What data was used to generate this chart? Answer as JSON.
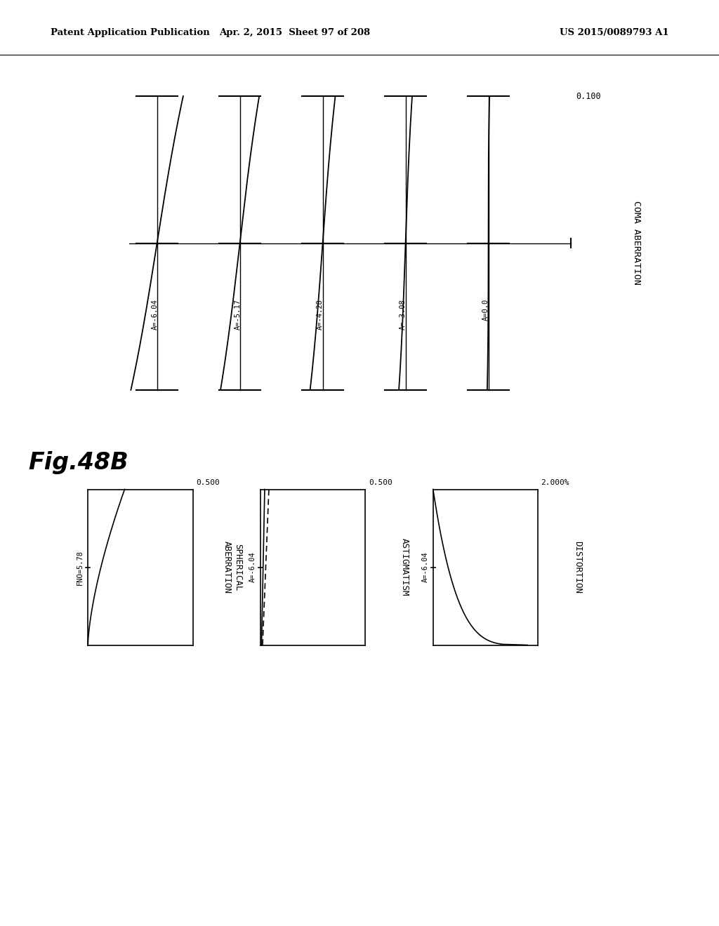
{
  "header_left": "Patent Application Publication",
  "header_mid": "Apr. 2, 2015  Sheet 97 of 208",
  "header_right": "US 2015/0089793 A1",
  "fig_label": "Fig.48B",
  "coma_title": "COMA ABERRATION",
  "coma_scale": "0.100",
  "coma_labels": [
    "A=-6.04",
    "A=-5.17",
    "A=-4.28",
    "A=-3.08",
    "A=0.0"
  ],
  "distortion_title": "DISTORTION",
  "distortion_scale": "2.000%",
  "distortion_label": "A=-6.04",
  "astigmatism_title": "ASTIGMATISM",
  "astigmatism_scale": "0.500",
  "astigmatism_label": "A=-6.04",
  "spherical_title": "SPHERICAL\nABERRATION",
  "spherical_scale": "0.500",
  "spherical_label": "FNO=5.78",
  "bg_color": "#ffffff",
  "line_color": "#000000"
}
